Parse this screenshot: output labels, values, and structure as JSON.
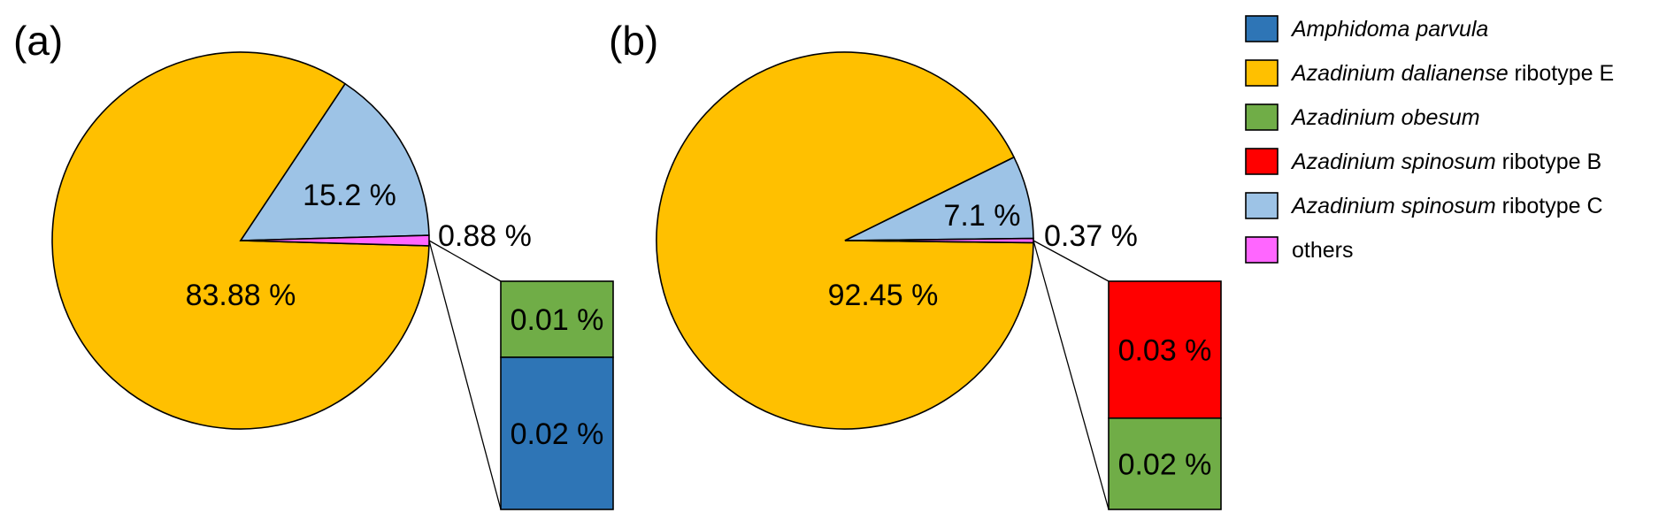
{
  "chart_data": [
    {
      "type": "pie",
      "panel_label": "(a)",
      "slices": [
        {
          "name": "Azadinium dalianense ribotype E",
          "value": 83.88,
          "label": "83.88 %"
        },
        {
          "name": "Azadinium spinosum ribotype C",
          "value": 15.2,
          "label": "15.2 %"
        },
        {
          "name": "others",
          "value": 0.88,
          "label": "0.88 %"
        }
      ],
      "breakout": [
        {
          "name": "Azadinium obesum",
          "value": 0.01,
          "label": "0.01 %"
        },
        {
          "name": "Amphidoma parvula",
          "value": 0.02,
          "label": "0.02 %"
        }
      ]
    },
    {
      "type": "pie",
      "panel_label": "(b)",
      "slices": [
        {
          "name": "Azadinium dalianense ribotype E",
          "value": 92.45,
          "label": "92.45 %"
        },
        {
          "name": "Azadinium spinosum ribotype C",
          "value": 7.1,
          "label": "7.1 %"
        },
        {
          "name": "others",
          "value": 0.37,
          "label": "0.37 %"
        }
      ],
      "breakout": [
        {
          "name": "Azadinium spinosum ribotype B",
          "value": 0.03,
          "label": "0.03 %"
        },
        {
          "name": "Azadinium obesum",
          "value": 0.02,
          "label": "0.02 %"
        }
      ]
    }
  ],
  "legend": [
    {
      "key": "amphidoma",
      "species": "Amphidoma parvula",
      "suffix": "",
      "color": "#2E75B6"
    },
    {
      "key": "dalianense",
      "species": "Azadinium dalianense",
      "suffix": " ribotype E",
      "color": "#FFC000"
    },
    {
      "key": "obesum",
      "species": "Azadinium obesum",
      "suffix": "",
      "color": "#70AD47"
    },
    {
      "key": "spinosumB",
      "species": "Azadinium spinosum",
      "suffix": " ribotype B",
      "color": "#FF0000"
    },
    {
      "key": "spinosumC",
      "species": "Azadinium spinosum",
      "suffix": " ribotype C",
      "color": "#9DC3E6"
    },
    {
      "key": "others",
      "species": "",
      "suffix": "others",
      "color": "#FF66FF"
    }
  ]
}
